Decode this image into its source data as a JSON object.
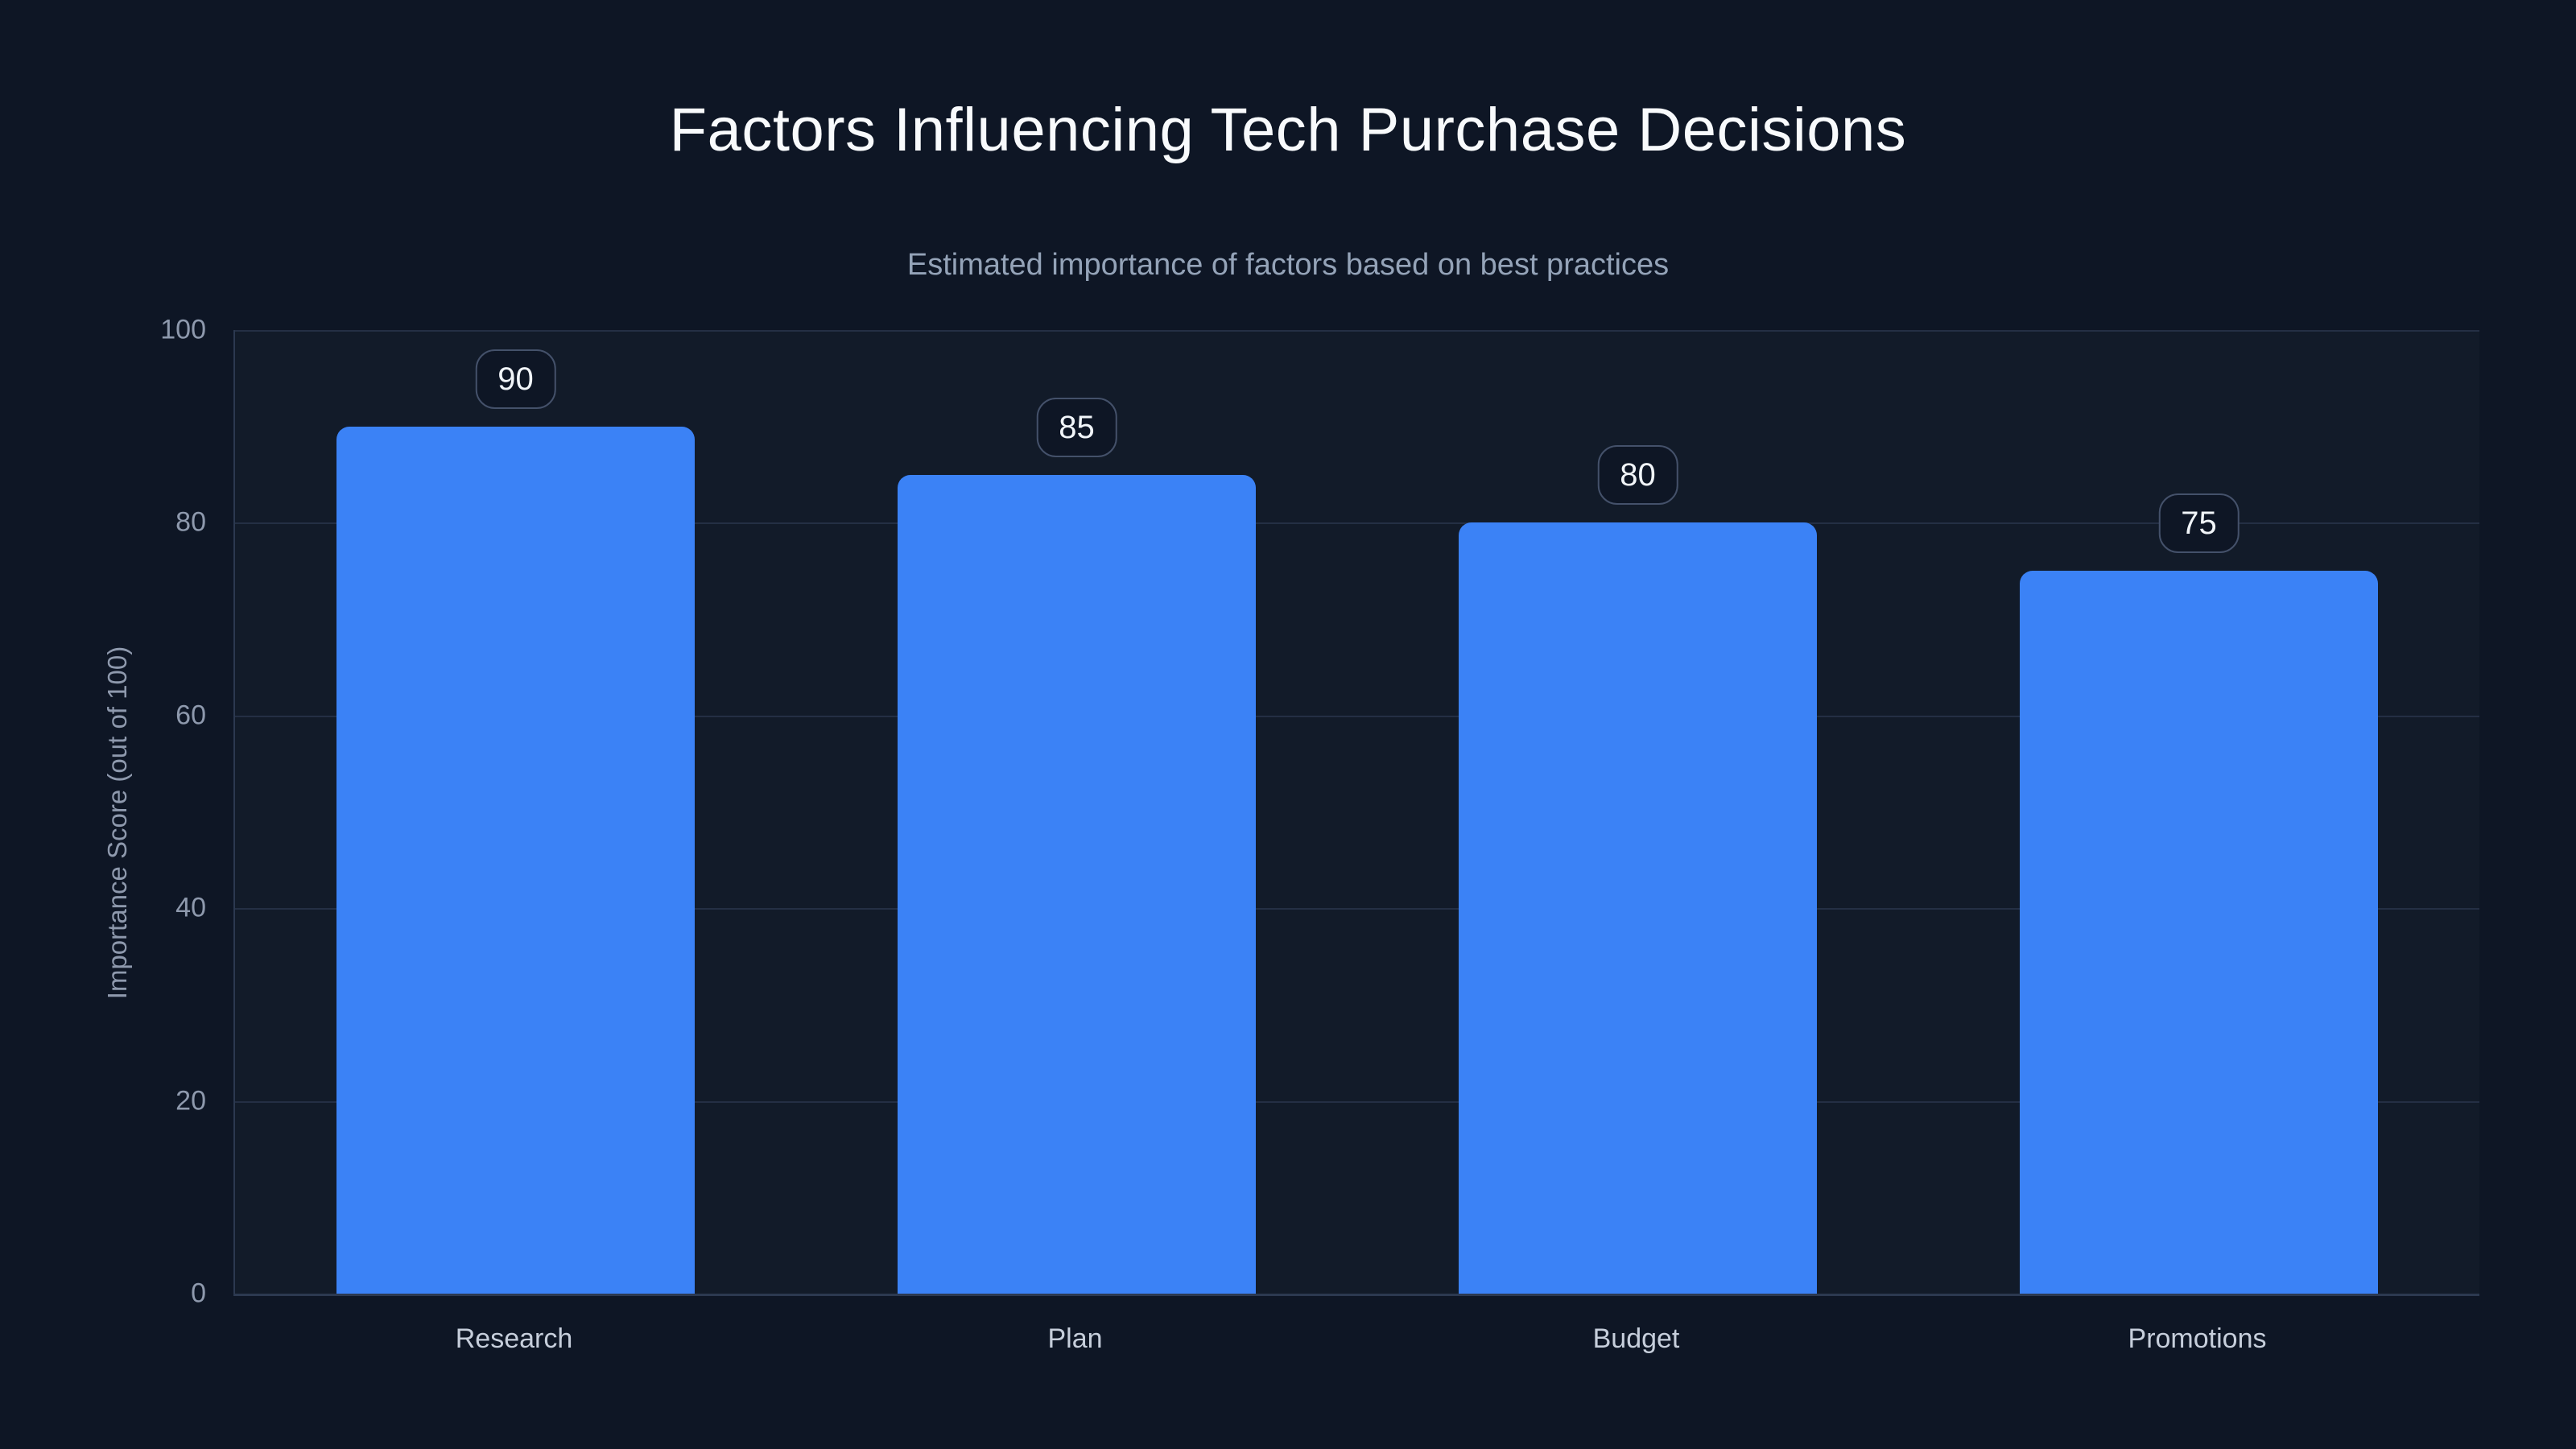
{
  "page": {
    "background_color": "#0e1625",
    "accent_color": "#3b82f6"
  },
  "chart_data": {
    "type": "bar",
    "title": "Factors Influencing Tech Purchase Decisions",
    "subtitle": "Estimated importance of factors based on best practices",
    "categories": [
      "Research",
      "Plan",
      "Budget",
      "Promotions"
    ],
    "values": [
      90,
      85,
      80,
      75
    ],
    "value_labels": [
      "90",
      "85",
      "80",
      "75"
    ],
    "xlabel": "",
    "ylabel": "Importance Score (out of 100)",
    "ylim": [
      0,
      100
    ],
    "yticks": [
      0,
      20,
      40,
      60,
      80,
      100
    ],
    "grid": "horizontal-only",
    "legend": "none",
    "bar_color": "#3b82f6",
    "title_color": "#f8fafc",
    "subtitle_color": "#94a3b8",
    "axis_text_color": "#8e99ad",
    "category_text_color": "#c6cedb",
    "gridline_color": "#242f44",
    "value_badge": {
      "text_color": "#f1f5f9",
      "border_color": "#44516a",
      "background_color": "#0e1625"
    }
  }
}
